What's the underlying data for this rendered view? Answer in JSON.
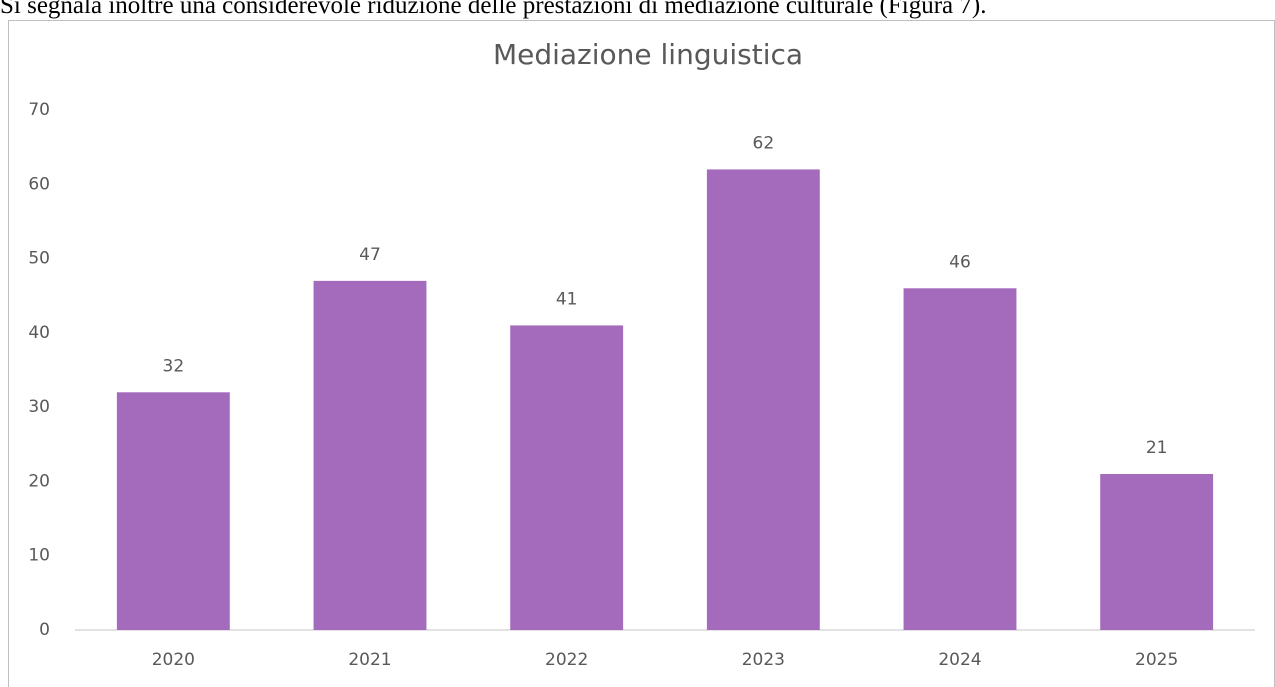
{
  "paragraph": "Si segnala inoltre una considerevole riduzione delle prestazioni di mediazione culturale (Figura 7).",
  "chart_data": {
    "type": "bar",
    "title": "Mediazione linguistica",
    "categories": [
      "2020",
      "2021",
      "2022",
      "2023",
      "2024",
      "2025"
    ],
    "values": [
      32,
      47,
      41,
      62,
      46,
      21
    ],
    "color": "#a46bbd",
    "ylim": [
      0,
      70
    ],
    "yticks": [
      0,
      10,
      20,
      30,
      40,
      50,
      60,
      70
    ],
    "grid": false
  }
}
